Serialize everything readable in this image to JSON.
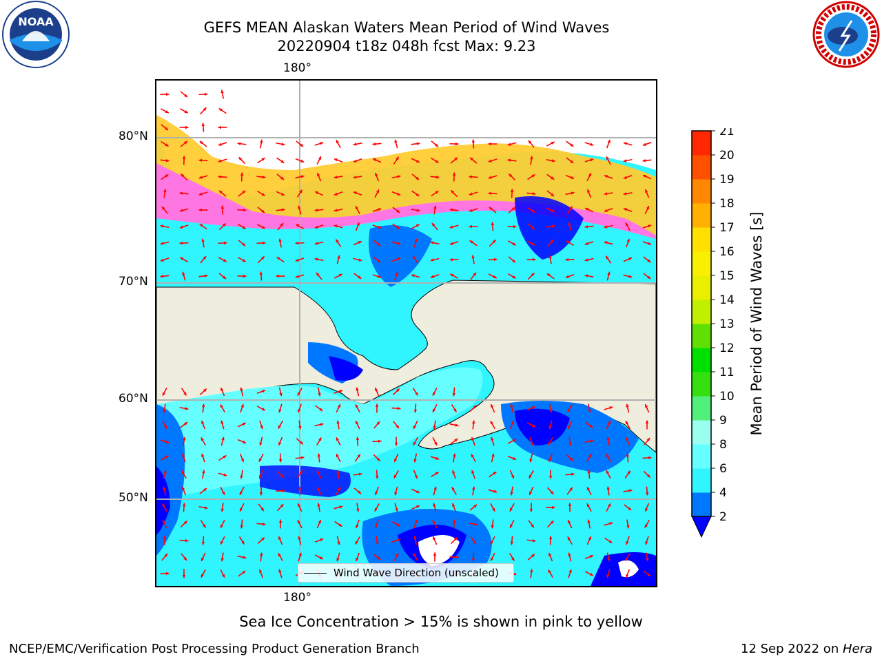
{
  "title": {
    "line1": "GEFS MEAN Alaskan Waters Mean Period of Wind Waves",
    "line2": "20220904 t18z 048h fcst   Max: 9.23"
  },
  "logos": {
    "left": {
      "icon": "noaa-logo",
      "text": "NOAA"
    },
    "right": {
      "icon": "national-weather-service-logo",
      "text": "NATIONAL WEATHER SERVICE"
    }
  },
  "map": {
    "lon_labels": {
      "top": "180°",
      "bottom": "180°"
    },
    "lat_labels": [
      "80°N",
      "70°N",
      "60°N",
      "50°N"
    ],
    "land_color": "#efedde",
    "legend": "Wind Wave Direction (unscaled)",
    "arrow_color": "#ff0000"
  },
  "colorbar": {
    "label": "Mean Period of Wind Waves [s]",
    "ticks": [
      "2",
      "4",
      "6",
      "8",
      "9",
      "10",
      "11",
      "12",
      "13",
      "14",
      "15",
      "16",
      "17",
      "18",
      "19",
      "20",
      "21"
    ],
    "colors": [
      "#0077ff",
      "#00e5ff",
      "#30f5ff",
      "#66ffff",
      "#9bfff0",
      "#50f07a",
      "#36e010",
      "#00e000",
      "#60e000",
      "#c0f000",
      "#e8f000",
      "#f8f000",
      "#ffe000",
      "#ffb000",
      "#ff8800",
      "#ff5000",
      "#ff2800",
      "#ff0000"
    ],
    "extend_color": "#0000ff"
  },
  "notes": {
    "sea_ice": "Sea Ice Concentration > 15% is shown in pink to yellow",
    "footer_left": "NCEP/EMC/Verification Post Processing Product Generation Branch",
    "footer_right_date": "12 Sep 2022 on ",
    "footer_right_host": "Hera"
  }
}
